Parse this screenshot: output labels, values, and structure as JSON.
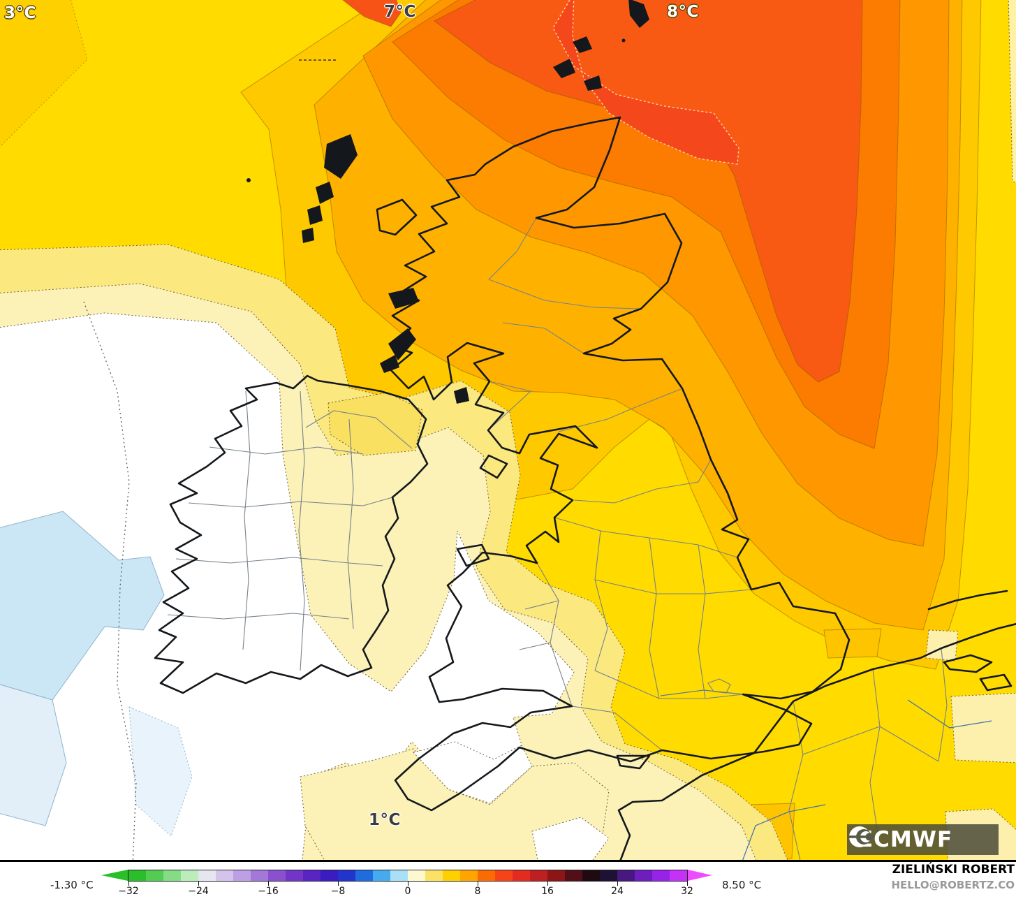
{
  "map": {
    "logo_text": "ECMWF"
  },
  "footer": {
    "min_label": "-1.30 °C",
    "max_label": "8.50 °C",
    "attribution_name": "ZIELIŃSKI ROBERT",
    "attribution_contact": "HELLO@ROBERTZ.CO"
  },
  "colors": {
    "band_white": "#FFFFFF",
    "band_pale_blue": "#CBE6F5",
    "band_palest_yellow": "#FCF1B6",
    "band_pale_yellow": "#FBE87E",
    "band_yellow": "#FFDB00",
    "band_gold": "#FFC900",
    "band_amber": "#FFB100",
    "band_orange": "#FF9800",
    "band_dark_orange": "#FB7C00",
    "band_orange_red": "#F85A14",
    "band_red": "#F4481C",
    "coastline": "#14181c",
    "admin_border": "#76828c",
    "logo_box": "rgba(74,74,56,0.85)"
  },
  "chart_data": {
    "type": "heatmap",
    "subtype": "filled-contour 2m temperature map, British Isles",
    "unit": "°C",
    "legend_position": "bottom",
    "contour_labels": [
      {
        "text": "3°C",
        "region": "north-west"
      },
      {
        "text": "7°C",
        "region": "north"
      },
      {
        "text": "8°C",
        "region": "north-east"
      },
      {
        "text": "1°C",
        "region": "south"
      }
    ],
    "colorbar": {
      "orientation": "horizontal",
      "domain": [
        -32,
        32
      ],
      "tick_labels": [
        "−32",
        "−24",
        "−16",
        "−8",
        "0",
        "8",
        "16",
        "24",
        "32"
      ],
      "min_value_label": "-1.30 °C",
      "max_value_label": "8.50 °C",
      "arrow_left_color": "#2abf2a",
      "arrow_right_color": "#ef4bfe",
      "segments": [
        {
          "from": -32,
          "to": -30,
          "color": "#2abf2a"
        },
        {
          "from": -30,
          "to": -28,
          "color": "#52cd52"
        },
        {
          "from": -28,
          "to": -26,
          "color": "#84dc84"
        },
        {
          "from": -26,
          "to": -24,
          "color": "#bcebbc"
        },
        {
          "from": -24,
          "to": -22,
          "color": "#e6e6f0"
        },
        {
          "from": -22,
          "to": -20,
          "color": "#d4c4ec"
        },
        {
          "from": -20,
          "to": -18,
          "color": "#bd9fe4"
        },
        {
          "from": -18,
          "to": -16,
          "color": "#a378d8"
        },
        {
          "from": -16,
          "to": -14,
          "color": "#8b50ce"
        },
        {
          "from": -14,
          "to": -12,
          "color": "#7334c8"
        },
        {
          "from": -12,
          "to": -10,
          "color": "#5a24c4"
        },
        {
          "from": -10,
          "to": -8,
          "color": "#3b1cc0"
        },
        {
          "from": -8,
          "to": -6,
          "color": "#2134cc"
        },
        {
          "from": -6,
          "to": -4,
          "color": "#1e6cde"
        },
        {
          "from": -4,
          "to": -2,
          "color": "#46abee"
        },
        {
          "from": -2,
          "to": 0,
          "color": "#a8e0f8"
        },
        {
          "from": 0,
          "to": 2,
          "color": "#fef8d0"
        },
        {
          "from": 2,
          "to": 4,
          "color": "#fbe266"
        },
        {
          "from": 4,
          "to": 6,
          "color": "#ffd000"
        },
        {
          "from": 6,
          "to": 8,
          "color": "#ffa400"
        },
        {
          "from": 8,
          "to": 10,
          "color": "#fb6b04"
        },
        {
          "from": 10,
          "to": 12,
          "color": "#f64418"
        },
        {
          "from": 12,
          "to": 14,
          "color": "#e32b20"
        },
        {
          "from": 14,
          "to": 16,
          "color": "#bd2020"
        },
        {
          "from": 16,
          "to": 18,
          "color": "#8c1515"
        },
        {
          "from": 18,
          "to": 20,
          "color": "#520f18"
        },
        {
          "from": 20,
          "to": 22,
          "color": "#200a12"
        },
        {
          "from": 22,
          "to": 24,
          "color": "#1d1134"
        },
        {
          "from": 24,
          "to": 26,
          "color": "#471880"
        },
        {
          "from": 26,
          "to": 28,
          "color": "#6f1dbe"
        },
        {
          "from": 28,
          "to": 30,
          "color": "#9722e8"
        },
        {
          "from": 30,
          "to": 32,
          "color": "#c631f8"
        }
      ]
    }
  }
}
